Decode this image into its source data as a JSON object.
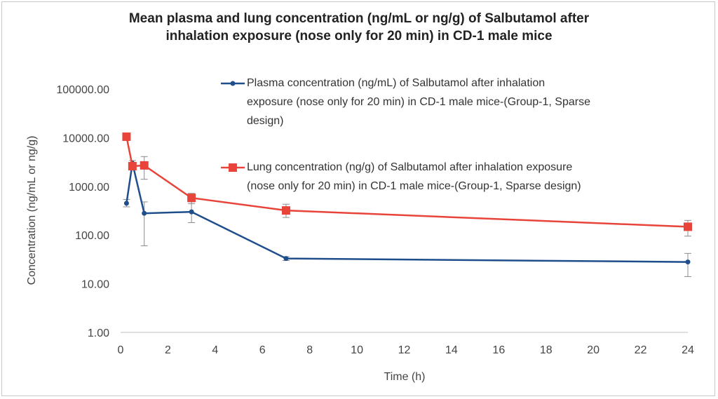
{
  "chart_data": {
    "type": "line",
    "title": "Mean plasma  and lung concentration (ng/mL or ng/g) of Salbutamol after\ninhalation exposure (nose only for 20 min) in CD-1 male mice",
    "xlabel": "Time (h)",
    "ylabel": "Concentration (ng/mL or ng/g)",
    "xlim": [
      0,
      24
    ],
    "xticks": [
      0,
      2,
      4,
      6,
      8,
      10,
      12,
      14,
      16,
      18,
      20,
      22,
      24
    ],
    "ylim": [
      1,
      100000
    ],
    "yscale": "log",
    "yticks": [
      1,
      10,
      100,
      1000,
      10000,
      100000
    ],
    "ytick_labels": [
      "1.00",
      "10.00",
      "100.00",
      "1000.00",
      "10000.00",
      "100000.00"
    ],
    "grid": false,
    "legend_placement": "top-right",
    "series": [
      {
        "name": "Plasma concentration (ng/mL) of Salbutamol after inhalation exposure (nose only for 20 min) in CD-1 male mice-(Group-1, Sparse design)",
        "legend_lines": [
          "Plasma concentration (ng/mL) of Salbutamol after inhalation",
          "exposure (nose only for 20 min) in CD-1 male mice-(Group-1, Sparse",
          "design)"
        ],
        "color": "#1f4e8c",
        "marker": "circle",
        "x": [
          0.25,
          0.5,
          1,
          3,
          7,
          24
        ],
        "y": [
          450,
          3000,
          280,
          300,
          33,
          28
        ],
        "err_low": [
          380,
          2600,
          60,
          180,
          30,
          14
        ],
        "err_high": [
          540,
          3400,
          480,
          480,
          36,
          42
        ]
      },
      {
        "name": "Lung concentration (ng/g) of Salbutamol after inhalation exposure (nose only for 20 min) in CD-1 male mice-(Group-1, Sparse design)",
        "legend_lines": [
          "Lung concentration (ng/g) of Salbutamol after inhalation exposure",
          "(nose only for 20 min) in CD-1 male mice-(Group-1, Sparse design)"
        ],
        "color": "#e8443a",
        "marker": "square",
        "x": [
          0.25,
          0.5,
          1,
          3,
          7,
          24
        ],
        "y": [
          10500,
          2600,
          2700,
          580,
          320,
          148
        ],
        "err_low": [
          10500,
          2200,
          1400,
          440,
          230,
          95
        ],
        "err_high": [
          10500,
          3000,
          4100,
          720,
          430,
          200
        ]
      }
    ]
  }
}
